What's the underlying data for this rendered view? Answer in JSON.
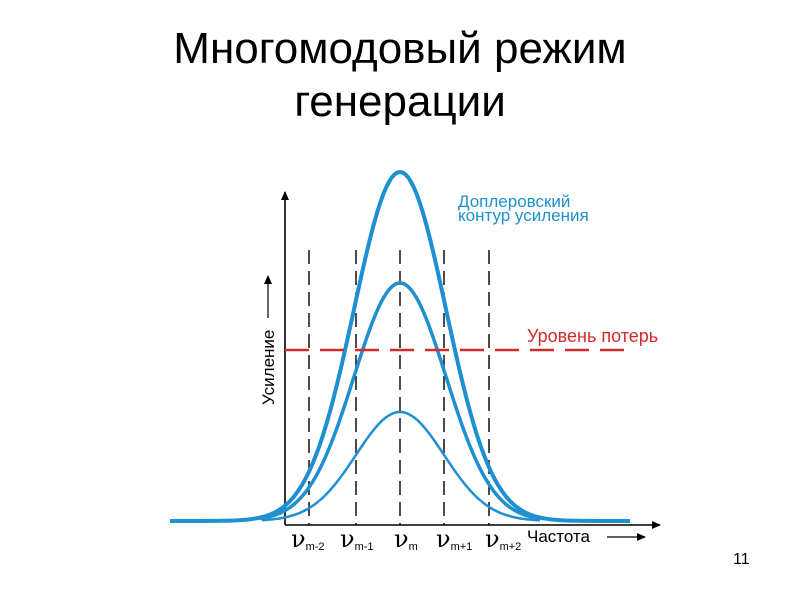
{
  "slide": {
    "title_line1": "Многомодовый режим",
    "title_line2": "генерации",
    "page_number": "11"
  },
  "diagram": {
    "y_axis_label": "Усиление",
    "x_axis_label": "Частота",
    "doppler_label_line1": "Доплеровский",
    "doppler_label_line2": "контур усиления",
    "loss_label": "Уровень потерь",
    "modes": [
      {
        "sym": "ν",
        "sub": "m-2"
      },
      {
        "sym": "ν",
        "sub": "m-1"
      },
      {
        "sym": "ν",
        "sub": "m"
      },
      {
        "sym": "ν",
        "sub": "m+1"
      },
      {
        "sym": "ν",
        "sub": "m+2"
      }
    ],
    "colors": {
      "curve": "#1e8fd0",
      "loss": "#d22a2a",
      "axis": "#000000"
    }
  }
}
